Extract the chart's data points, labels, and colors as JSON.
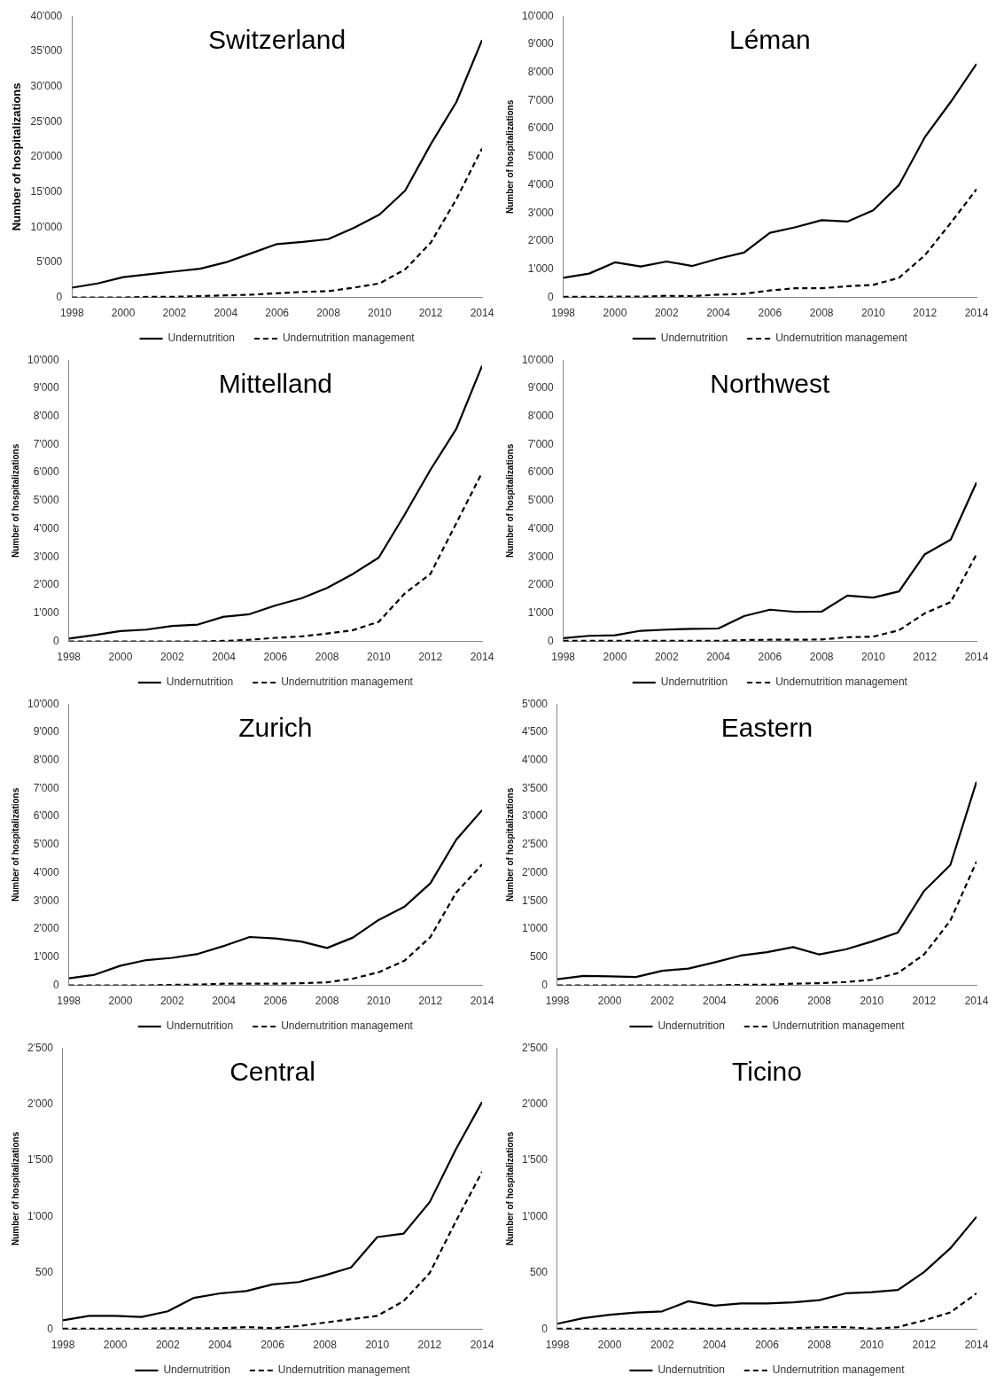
{
  "chart_data": [
    {
      "type": "line",
      "title": "Switzerland",
      "ylabel": "Number of hospitalizations",
      "legend": "bottom",
      "marker": "none",
      "x": [
        1998,
        1999,
        2000,
        2001,
        2002,
        2003,
        2004,
        2005,
        2006,
        2007,
        2008,
        2009,
        2010,
        2011,
        2012,
        2013,
        2014
      ],
      "xlim": [
        1998,
        2014
      ],
      "xticks": [
        1998,
        2000,
        2002,
        2004,
        2006,
        2008,
        2010,
        2012,
        2014
      ],
      "ylim": [
        0,
        40000
      ],
      "yticks": [
        {
          "value": 0,
          "label": "0"
        },
        {
          "value": 5000,
          "label": "5'000"
        },
        {
          "value": 10000,
          "label": "10'000"
        },
        {
          "value": 15000,
          "label": "15'000"
        },
        {
          "value": 20000,
          "label": "20'000"
        },
        {
          "value": 25000,
          "label": "25'000"
        },
        {
          "value": 30000,
          "label": "30'000"
        },
        {
          "value": 35000,
          "label": "35'000"
        },
        {
          "value": 40000,
          "label": "40'000"
        }
      ],
      "series": [
        {
          "name": "Undernutrition",
          "color": "#000000",
          "line_style": "solid",
          "values": [
            1400,
            2000,
            2900,
            3300,
            3700,
            4100,
            5000,
            6300,
            7600,
            7900,
            8300,
            9900,
            11800,
            15200,
            21800,
            27800,
            36600
          ]
        },
        {
          "name": "Undernutrition management",
          "color": "#000000",
          "line_style": "dashed",
          "values": [
            0,
            0,
            0,
            100,
            100,
            200,
            300,
            400,
            600,
            800,
            900,
            1400,
            2000,
            4000,
            7800,
            14000,
            21200
          ]
        }
      ]
    },
    {
      "type": "line",
      "title": "Léman",
      "ylabel": "Number of hospitalizations",
      "legend": "bottom",
      "marker": "none",
      "x": [
        1998,
        1999,
        2000,
        2001,
        2002,
        2003,
        2004,
        2005,
        2006,
        2007,
        2008,
        2009,
        2010,
        2011,
        2012,
        2013,
        2014
      ],
      "xlim": [
        1998,
        2014
      ],
      "xticks": [
        1998,
        2000,
        2002,
        2004,
        2006,
        2008,
        2010,
        2012,
        2014
      ],
      "ylim": [
        0,
        10000
      ],
      "yticks": [
        {
          "value": 0,
          "label": "0"
        },
        {
          "value": 1000,
          "label": "1'000"
        },
        {
          "value": 2000,
          "label": "2'000"
        },
        {
          "value": 3000,
          "label": "3'000"
        },
        {
          "value": 4000,
          "label": "4'000"
        },
        {
          "value": 5000,
          "label": "5'000"
        },
        {
          "value": 6000,
          "label": "6'000"
        },
        {
          "value": 7000,
          "label": "7'000"
        },
        {
          "value": 8000,
          "label": "8'000"
        },
        {
          "value": 9000,
          "label": "9'000"
        },
        {
          "value": 10000,
          "label": "10'000"
        }
      ],
      "series": [
        {
          "name": "Undernutrition",
          "color": "#000000",
          "line_style": "solid",
          "values": [
            700,
            850,
            1250,
            1100,
            1280,
            1120,
            1380,
            1600,
            2300,
            2500,
            2750,
            2700,
            3100,
            4000,
            5700,
            6950,
            8300
          ]
        },
        {
          "name": "Undernutrition management",
          "color": "#000000",
          "line_style": "dashed",
          "values": [
            20,
            20,
            30,
            30,
            60,
            50,
            100,
            130,
            250,
            330,
            330,
            400,
            450,
            700,
            1500,
            2650,
            3850
          ]
        }
      ]
    },
    {
      "type": "line",
      "title": "Mittelland",
      "ylabel": "Number of hospitalizations",
      "legend": "bottom",
      "marker": "none",
      "x": [
        1998,
        1999,
        2000,
        2001,
        2002,
        2003,
        2004,
        2005,
        2006,
        2007,
        2008,
        2009,
        2010,
        2011,
        2012,
        2013,
        2014
      ],
      "xlim": [
        1998,
        2014
      ],
      "xticks": [
        1998,
        2000,
        2002,
        2004,
        2006,
        2008,
        2010,
        2012,
        2014
      ],
      "ylim": [
        0,
        10000
      ],
      "yticks": [
        {
          "value": 0,
          "label": "0"
        },
        {
          "value": 1000,
          "label": "1'000"
        },
        {
          "value": 2000,
          "label": "2'000"
        },
        {
          "value": 3000,
          "label": "3'000"
        },
        {
          "value": 4000,
          "label": "4'000"
        },
        {
          "value": 5000,
          "label": "5'000"
        },
        {
          "value": 6000,
          "label": "6'000"
        },
        {
          "value": 7000,
          "label": "7'000"
        },
        {
          "value": 8000,
          "label": "8'000"
        },
        {
          "value": 9000,
          "label": "9'000"
        },
        {
          "value": 10000,
          "label": "10'000"
        }
      ],
      "series": [
        {
          "name": "Undernutrition",
          "color": "#000000",
          "line_style": "solid",
          "values": [
            100,
            230,
            370,
            420,
            550,
            600,
            880,
            970,
            1280,
            1530,
            1900,
            2400,
            2980,
            4500,
            6100,
            7550,
            9800
          ]
        },
        {
          "name": "Undernutrition management",
          "color": "#000000",
          "line_style": "dashed",
          "values": [
            0,
            0,
            0,
            0,
            0,
            0,
            20,
            60,
            130,
            180,
            280,
            400,
            700,
            1700,
            2400,
            4200,
            6000
          ]
        }
      ]
    },
    {
      "type": "line",
      "title": "Northwest",
      "ylabel": "Number of hospitalizations",
      "legend": "bottom",
      "marker": "none",
      "x": [
        1998,
        1999,
        2000,
        2001,
        2002,
        2003,
        2004,
        2005,
        2006,
        2007,
        2008,
        2009,
        2010,
        2011,
        2012,
        2013,
        2014
      ],
      "xlim": [
        1998,
        2014
      ],
      "xticks": [
        1998,
        2000,
        2002,
        2004,
        2006,
        2008,
        2010,
        2012,
        2014
      ],
      "ylim": [
        0,
        10000
      ],
      "yticks": [
        {
          "value": 0,
          "label": "0"
        },
        {
          "value": 1000,
          "label": "1'000"
        },
        {
          "value": 2000,
          "label": "2'000"
        },
        {
          "value": 3000,
          "label": "3'000"
        },
        {
          "value": 4000,
          "label": "4'000"
        },
        {
          "value": 5000,
          "label": "5'000"
        },
        {
          "value": 6000,
          "label": "6'000"
        },
        {
          "value": 7000,
          "label": "7'000"
        },
        {
          "value": 8000,
          "label": "8'000"
        },
        {
          "value": 9000,
          "label": "9'000"
        },
        {
          "value": 10000,
          "label": "10'000"
        }
      ],
      "series": [
        {
          "name": "Undernutrition",
          "color": "#000000",
          "line_style": "solid",
          "values": [
            120,
            200,
            220,
            380,
            420,
            450,
            460,
            900,
            1130,
            1050,
            1060,
            1630,
            1560,
            1780,
            3100,
            3620,
            5650
          ]
        },
        {
          "name": "Undernutrition management",
          "color": "#000000",
          "line_style": "dashed",
          "values": [
            20,
            20,
            20,
            20,
            20,
            20,
            20,
            50,
            60,
            60,
            70,
            150,
            170,
            400,
            1000,
            1400,
            3100
          ]
        }
      ]
    },
    {
      "type": "line",
      "title": "Zurich",
      "ylabel": "Number of hospitalizations",
      "legend": "bottom",
      "marker": "none",
      "x": [
        1998,
        1999,
        2000,
        2001,
        2002,
        2003,
        2004,
        2005,
        2006,
        2007,
        2008,
        2009,
        2010,
        2011,
        2012,
        2013,
        2014
      ],
      "xlim": [
        1998,
        2014
      ],
      "xticks": [
        1998,
        2000,
        2002,
        2004,
        2006,
        2008,
        2010,
        2012,
        2014
      ],
      "ylim": [
        0,
        10000
      ],
      "yticks": [
        {
          "value": 0,
          "label": "0"
        },
        {
          "value": 1000,
          "label": "1'000"
        },
        {
          "value": 2000,
          "label": "2'000"
        },
        {
          "value": 3000,
          "label": "3'000"
        },
        {
          "value": 4000,
          "label": "4'000"
        },
        {
          "value": 5000,
          "label": "5'000"
        },
        {
          "value": 6000,
          "label": "6'000"
        },
        {
          "value": 7000,
          "label": "7'000"
        },
        {
          "value": 8000,
          "label": "8'000"
        },
        {
          "value": 9000,
          "label": "9'000"
        },
        {
          "value": 10000,
          "label": "10'000"
        }
      ],
      "series": [
        {
          "name": "Undernutrition",
          "color": "#000000",
          "line_style": "solid",
          "values": [
            250,
            380,
            700,
            900,
            980,
            1120,
            1400,
            1720,
            1670,
            1560,
            1330,
            1700,
            2330,
            2800,
            3630,
            5180,
            6230
          ]
        },
        {
          "name": "Undernutrition management",
          "color": "#000000",
          "line_style": "dashed",
          "values": [
            0,
            0,
            0,
            0,
            20,
            30,
            60,
            60,
            60,
            80,
            110,
            240,
            470,
            880,
            1720,
            3300,
            4300
          ]
        }
      ]
    },
    {
      "type": "line",
      "title": "Eastern",
      "ylabel": "Number of hospitalizations",
      "legend": "bottom",
      "marker": "none",
      "x": [
        1998,
        1999,
        2000,
        2001,
        2002,
        2003,
        2004,
        2005,
        2006,
        2007,
        2008,
        2009,
        2010,
        2011,
        2012,
        2013,
        2014
      ],
      "xlim": [
        1998,
        2014
      ],
      "xticks": [
        1998,
        2000,
        2002,
        2004,
        2006,
        2008,
        2010,
        2012,
        2014
      ],
      "ylim": [
        0,
        5000
      ],
      "yticks": [
        {
          "value": 0,
          "label": "0"
        },
        {
          "value": 500,
          "label": "500"
        },
        {
          "value": 1000,
          "label": "1'000"
        },
        {
          "value": 1500,
          "label": "1'500"
        },
        {
          "value": 2000,
          "label": "2'000"
        },
        {
          "value": 2500,
          "label": "2'500"
        },
        {
          "value": 3000,
          "label": "3'000"
        },
        {
          "value": 3500,
          "label": "3'500"
        },
        {
          "value": 4000,
          "label": "4'000"
        },
        {
          "value": 4500,
          "label": "4'500"
        },
        {
          "value": 5000,
          "label": "5'000"
        }
      ],
      "series": [
        {
          "name": "Undernutrition",
          "color": "#000000",
          "line_style": "solid",
          "values": [
            110,
            170,
            160,
            150,
            260,
            300,
            410,
            530,
            590,
            680,
            550,
            640,
            780,
            940,
            1680,
            2140,
            3620
          ]
        },
        {
          "name": "Undernutrition management",
          "color": "#000000",
          "line_style": "dashed",
          "values": [
            0,
            0,
            0,
            0,
            0,
            0,
            0,
            10,
            10,
            30,
            40,
            60,
            100,
            220,
            550,
            1150,
            2200
          ]
        }
      ]
    },
    {
      "type": "line",
      "title": "Central",
      "ylabel": "Number of hospitalizations",
      "legend": "bottom",
      "marker": "none",
      "x": [
        1998,
        1999,
        2000,
        2001,
        2002,
        2003,
        2004,
        2005,
        2006,
        2007,
        2008,
        2009,
        2010,
        2011,
        2012,
        2013,
        2014
      ],
      "xlim": [
        1998,
        2014
      ],
      "xticks": [
        1998,
        2000,
        2002,
        2004,
        2006,
        2008,
        2010,
        2012,
        2014
      ],
      "ylim": [
        0,
        2500
      ],
      "yticks": [
        {
          "value": 0,
          "label": "0"
        },
        {
          "value": 500,
          "label": "500"
        },
        {
          "value": 1000,
          "label": "1'000"
        },
        {
          "value": 1500,
          "label": "1'500"
        },
        {
          "value": 2000,
          "label": "2'000"
        },
        {
          "value": 2500,
          "label": "2'500"
        }
      ],
      "series": [
        {
          "name": "Undernutrition",
          "color": "#000000",
          "line_style": "solid",
          "values": [
            80,
            120,
            120,
            110,
            160,
            280,
            320,
            340,
            400,
            420,
            480,
            550,
            820,
            850,
            1130,
            1600,
            2020
          ]
        },
        {
          "name": "Undernutrition management",
          "color": "#000000",
          "line_style": "dashed",
          "values": [
            5,
            5,
            5,
            5,
            10,
            10,
            10,
            20,
            10,
            30,
            60,
            90,
            120,
            250,
            500,
            960,
            1400
          ]
        }
      ]
    },
    {
      "type": "line",
      "title": "Ticino",
      "ylabel": "Number of hospitalizations",
      "legend": "bottom",
      "marker": "none",
      "x": [
        1998,
        1999,
        2000,
        2001,
        2002,
        2003,
        2004,
        2005,
        2006,
        2007,
        2008,
        2009,
        2010,
        2011,
        2012,
        2013,
        2014
      ],
      "xlim": [
        1998,
        2014
      ],
      "xticks": [
        1998,
        2000,
        2002,
        2004,
        2006,
        2008,
        2010,
        2012,
        2014
      ],
      "ylim": [
        0,
        2500
      ],
      "yticks": [
        {
          "value": 0,
          "label": "0"
        },
        {
          "value": 500,
          "label": "500"
        },
        {
          "value": 1000,
          "label": "1'000"
        },
        {
          "value": 1500,
          "label": "1'500"
        },
        {
          "value": 2000,
          "label": "2'000"
        },
        {
          "value": 2500,
          "label": "2'500"
        }
      ],
      "series": [
        {
          "name": "Undernutrition",
          "color": "#000000",
          "line_style": "solid",
          "values": [
            50,
            100,
            130,
            150,
            160,
            250,
            210,
            230,
            230,
            240,
            260,
            320,
            330,
            350,
            510,
            720,
            1000
          ]
        },
        {
          "name": "Undernutrition management",
          "color": "#000000",
          "line_style": "dashed",
          "values": [
            5,
            5,
            5,
            5,
            5,
            5,
            5,
            5,
            5,
            10,
            20,
            20,
            5,
            20,
            80,
            150,
            320
          ]
        }
      ]
    }
  ]
}
